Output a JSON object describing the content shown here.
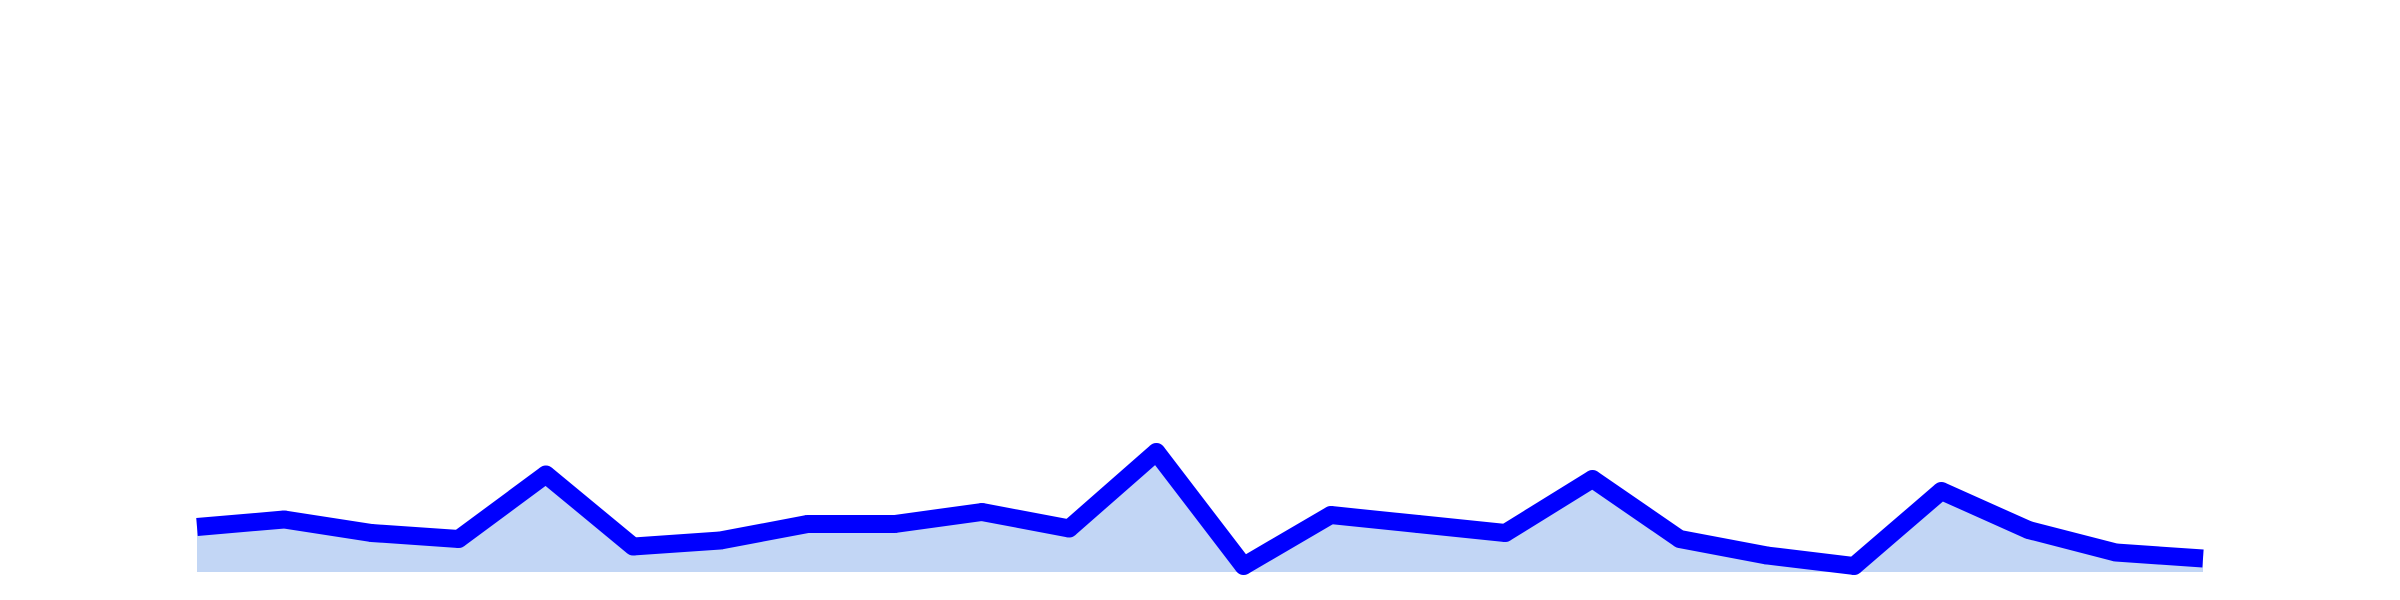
{
  "chart_data": {
    "type": "area",
    "title": "",
    "xlabel": "",
    "ylabel": "",
    "x": [
      1,
      2,
      3,
      4,
      5,
      6,
      7,
      8,
      9,
      10,
      11,
      12,
      13,
      14,
      15,
      16,
      17,
      18,
      19,
      20,
      21,
      22,
      23,
      24
    ],
    "series": [
      {
        "values": [
          15.0,
          17.5,
          13.0,
          11.0,
          32.5,
          8.5,
          10.5,
          16.0,
          16.0,
          20.0,
          14.5,
          40.0,
          2.0,
          19.0,
          16.0,
          13.0,
          31.0,
          11.0,
          5.5,
          2.0,
          27.0,
          14.0,
          6.5,
          4.5
        ]
      }
    ],
    "ylim": [
      0,
      150
    ],
    "grid": false,
    "colors": {
      "line": "#0000ff",
      "fill": "#c2d6f5",
      "background": "#ffffff"
    }
  }
}
